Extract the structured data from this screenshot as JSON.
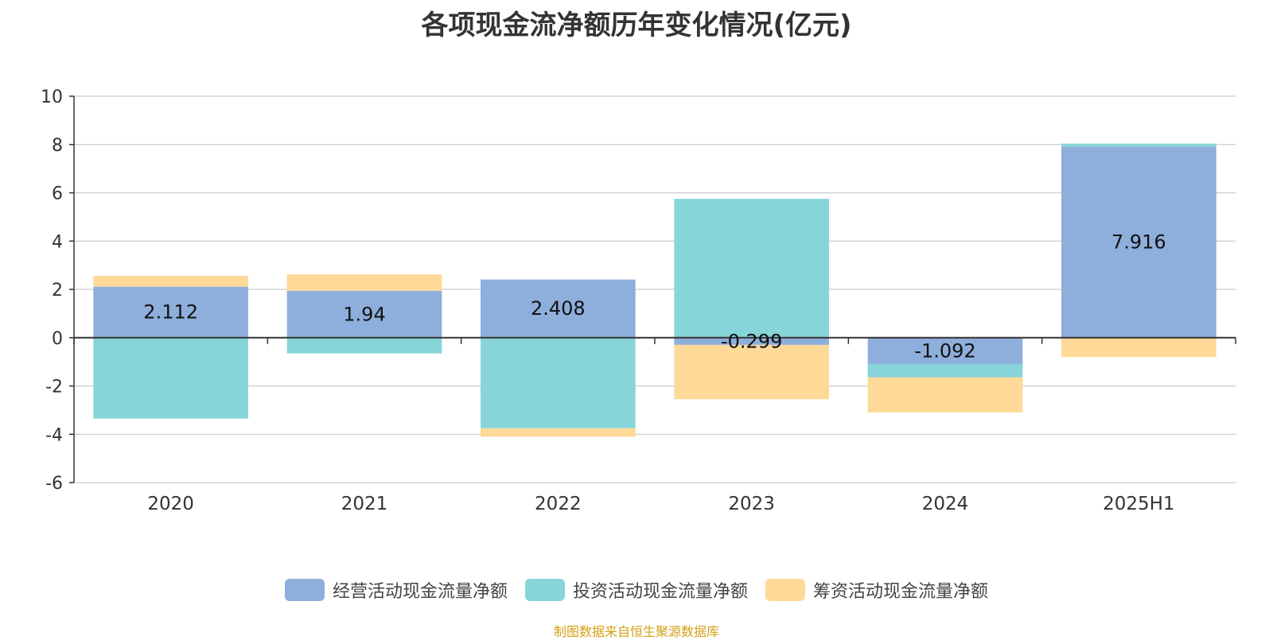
{
  "chart_data": {
    "type": "bar",
    "stacked": true,
    "title": "各项现金流净额历年变化情况(亿元)",
    "categories": [
      "2020",
      "2021",
      "2022",
      "2023",
      "2024",
      "2025H1"
    ],
    "ylim": [
      -6,
      10
    ],
    "yticks": [
      10,
      8,
      6,
      4,
      2,
      0,
      -2,
      -4,
      -6
    ],
    "grid": true,
    "legend_position": "bottom",
    "series": [
      {
        "name": "经营活动现金流量净额",
        "color": "#8eaedb",
        "values": [
          2.112,
          1.94,
          2.408,
          -0.299,
          -1.092,
          7.916
        ],
        "labels": [
          "2.112",
          "1.94",
          "2.408",
          "-0.299",
          "-1.092",
          "7.916"
        ]
      },
      {
        "name": "投资活动现金流量净额",
        "color": "#87d5d8",
        "values": [
          -3.35,
          -0.65,
          -3.75,
          5.75,
          -0.55,
          0.12
        ]
      },
      {
        "name": "筹资活动现金流量净额",
        "color": "#fed998",
        "values": [
          0.45,
          0.68,
          -0.35,
          -2.25,
          -1.45,
          -0.8
        ]
      }
    ]
  },
  "source": "制图数据来自恒生聚源数据库"
}
